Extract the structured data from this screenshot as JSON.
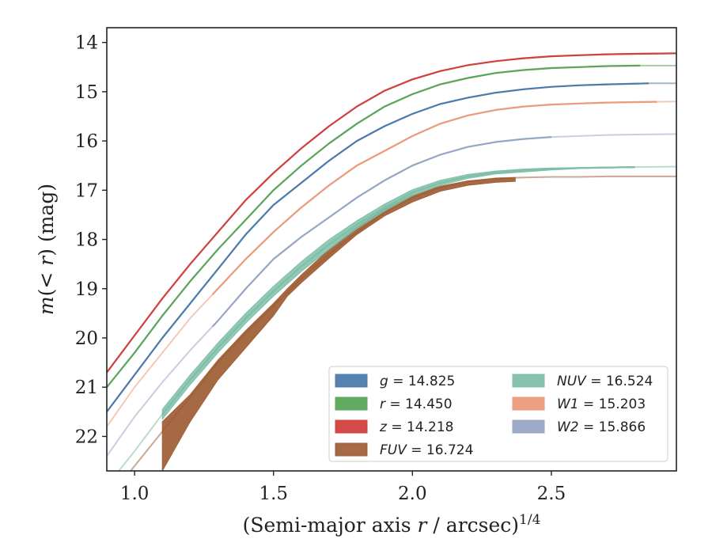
{
  "chart_data": {
    "type": "line",
    "xlabel_main": "(Semi-major axis ",
    "xlabel_var": "r",
    "xlabel_unit": " / arcsec)",
    "xlabel_exp": "1/4",
    "ylabel_main": "m",
    "ylabel_mid": "(< ",
    "ylabel_var": "r",
    "ylabel_end": ") (mag)",
    "xlim": [
      0.9,
      2.95
    ],
    "ylim": [
      22.7,
      13.7
    ],
    "y_inverted": true,
    "xticks": [
      1.0,
      1.5,
      2.0,
      2.5
    ],
    "xtick_labels": [
      "1.0",
      "1.5",
      "2.0",
      "2.5"
    ],
    "yticks": [
      14,
      15,
      16,
      17,
      18,
      19,
      20,
      21,
      22
    ],
    "ytick_labels": [
      "14",
      "15",
      "16",
      "17",
      "18",
      "19",
      "20",
      "21",
      "22"
    ],
    "grid": false,
    "legend_position": "lower-right",
    "legend_columns": 2,
    "series": [
      {
        "key": "g",
        "legend": {
          "var": "g",
          "value": "14.825"
        },
        "color": "#4c7bab",
        "x": [
          0.9,
          1.0,
          1.1,
          1.2,
          1.3,
          1.4,
          1.5,
          1.6,
          1.7,
          1.8,
          1.9,
          2.0,
          2.1,
          2.2,
          2.3,
          2.4,
          2.5,
          2.6,
          2.7,
          2.85
        ],
        "y": [
          21.5,
          20.75,
          20.0,
          19.3,
          18.6,
          17.9,
          17.3,
          16.85,
          16.4,
          16.0,
          15.7,
          15.45,
          15.25,
          15.12,
          15.02,
          14.95,
          14.9,
          14.87,
          14.85,
          14.83
        ],
        "solid_from": 0.9,
        "solid_to": 2.85,
        "faint_to": 2.95,
        "band_top": [],
        "band_bottom": []
      },
      {
        "key": "r",
        "legend": {
          "var": "r",
          "value": "14.450"
        },
        "color": "#5aa55a",
        "x": [
          0.9,
          1.0,
          1.1,
          1.2,
          1.3,
          1.4,
          1.5,
          1.6,
          1.7,
          1.8,
          1.9,
          2.0,
          2.1,
          2.2,
          2.3,
          2.4,
          2.5,
          2.6,
          2.7,
          2.82
        ],
        "y": [
          21.0,
          20.3,
          19.55,
          18.85,
          18.2,
          17.6,
          17.0,
          16.5,
          16.05,
          15.65,
          15.3,
          15.05,
          14.85,
          14.72,
          14.62,
          14.56,
          14.52,
          14.5,
          14.48,
          14.47
        ],
        "solid_from": 0.9,
        "solid_to": 2.82,
        "faint_to": 2.95,
        "band_top": [],
        "band_bottom": []
      },
      {
        "key": "z",
        "legend": {
          "var": "z",
          "value": "14.218"
        },
        "color": "#d0413e",
        "x": [
          0.9,
          1.0,
          1.1,
          1.2,
          1.3,
          1.4,
          1.5,
          1.6,
          1.7,
          1.8,
          1.9,
          2.0,
          2.1,
          2.2,
          2.3,
          2.4,
          2.5,
          2.6,
          2.7,
          2.8,
          2.95
        ],
        "y": [
          20.7,
          19.95,
          19.2,
          18.5,
          17.85,
          17.2,
          16.65,
          16.15,
          15.7,
          15.3,
          14.98,
          14.75,
          14.58,
          14.46,
          14.38,
          14.32,
          14.28,
          14.26,
          14.24,
          14.23,
          14.22
        ],
        "solid_from": 0.9,
        "solid_to": 2.95,
        "faint_to": 2.95,
        "band_top": [],
        "band_bottom": []
      },
      {
        "key": "NUV",
        "legend": {
          "var": "NUV",
          "value": "16.524"
        },
        "color": "#7fbfa8",
        "x": [
          0.9,
          1.0,
          1.1,
          1.2,
          1.3,
          1.4,
          1.5,
          1.6,
          1.7,
          1.8,
          1.9,
          2.0,
          2.1,
          2.2,
          2.3,
          2.4,
          2.5,
          2.6,
          2.7,
          2.8,
          2.95
        ],
        "y": [
          23.0,
          22.3,
          21.55,
          20.85,
          20.2,
          19.6,
          19.05,
          18.55,
          18.1,
          17.7,
          17.35,
          17.05,
          16.85,
          16.72,
          16.64,
          16.6,
          16.57,
          16.55,
          16.54,
          16.53,
          16.52
        ],
        "solid_from": 1.1,
        "solid_to": 2.8,
        "faint_to": 2.95,
        "band_top": [
          21.45,
          20.75,
          20.1,
          19.5,
          18.95,
          18.45,
          18.0,
          17.62,
          17.28,
          16.99,
          16.8,
          16.68,
          16.61,
          16.57,
          16.55,
          16.54,
          16.53,
          16.52
        ],
        "band_bottom": [
          21.65,
          20.95,
          20.3,
          19.7,
          19.15,
          18.65,
          18.2,
          17.78,
          17.42,
          17.11,
          16.9,
          16.76,
          16.67,
          16.63,
          16.59,
          16.56,
          16.55,
          16.54
        ]
      },
      {
        "key": "W1",
        "legend": {
          "var": "W1",
          "value": "15.203"
        },
        "color": "#eb9b7a",
        "x": [
          0.9,
          1.0,
          1.1,
          1.2,
          1.3,
          1.4,
          1.5,
          1.6,
          1.7,
          1.8,
          1.9,
          2.0,
          2.1,
          2.2,
          2.3,
          2.4,
          2.5,
          2.6,
          2.7,
          2.8,
          2.95
        ],
        "y": [
          21.8,
          21.0,
          20.3,
          19.6,
          19.0,
          18.4,
          17.85,
          17.35,
          16.9,
          16.5,
          16.2,
          15.9,
          15.65,
          15.48,
          15.37,
          15.3,
          15.26,
          15.24,
          15.22,
          15.21,
          15.2
        ],
        "solid_from": 1.28,
        "solid_to": 2.88,
        "faint_to": 2.95,
        "band_top": [],
        "band_bottom": []
      },
      {
        "key": "W2",
        "legend": {
          "var": "W2",
          "value": "15.866"
        },
        "color": "#97a6c4",
        "x": [
          0.9,
          1.0,
          1.1,
          1.2,
          1.3,
          1.4,
          1.5,
          1.6,
          1.7,
          1.8,
          1.9,
          2.0,
          2.1,
          2.2,
          2.3,
          2.4,
          2.5,
          2.6,
          2.7,
          2.8,
          2.95
        ],
        "y": [
          22.4,
          21.6,
          20.9,
          20.25,
          19.65,
          19.0,
          18.4,
          17.95,
          17.55,
          17.15,
          16.8,
          16.5,
          16.28,
          16.12,
          16.02,
          15.96,
          15.92,
          15.9,
          15.88,
          15.87,
          15.86
        ],
        "solid_from": 1.28,
        "solid_to": 2.5,
        "faint_to": 2.95,
        "band_top": [],
        "band_bottom": []
      },
      {
        "key": "FUV",
        "legend": {
          "var": "FUV",
          "value": "16.724"
        },
        "color": "#a0613a",
        "x": [
          0.9,
          1.0,
          1.1,
          1.2,
          1.3,
          1.4,
          1.5,
          1.6,
          1.7,
          1.8,
          1.9,
          2.0,
          2.1,
          2.2,
          2.3,
          2.4,
          2.5,
          2.6,
          2.7,
          2.8,
          2.95
        ],
        "y": [
          23.3,
          22.6,
          21.9,
          21.2,
          20.5,
          19.9,
          19.35,
          18.8,
          18.3,
          17.85,
          17.45,
          17.15,
          16.95,
          16.82,
          16.76,
          16.74,
          16.73,
          16.73,
          16.72,
          16.72,
          16.72
        ],
        "solid_from": 1.1,
        "solid_to": 2.37,
        "faint_to": 2.95,
        "band_x": [
          1.1,
          1.2,
          1.3,
          1.4,
          1.5,
          1.55,
          1.6,
          1.7,
          1.8,
          1.9,
          2.0,
          2.1,
          2.2,
          2.3,
          2.37
        ],
        "band_top": [
          21.7,
          21.15,
          20.45,
          19.85,
          19.3,
          19.0,
          18.72,
          18.2,
          17.75,
          17.38,
          17.1,
          16.92,
          16.81,
          16.77,
          16.75
        ],
        "band_bottom": [
          22.7,
          21.7,
          20.85,
          20.2,
          19.55,
          19.15,
          18.88,
          18.38,
          17.9,
          17.52,
          17.24,
          17.02,
          16.9,
          16.84,
          16.82
        ]
      }
    ],
    "legend_order": [
      "g",
      "r",
      "z",
      "FUV",
      "NUV",
      "W1",
      "W2"
    ]
  }
}
